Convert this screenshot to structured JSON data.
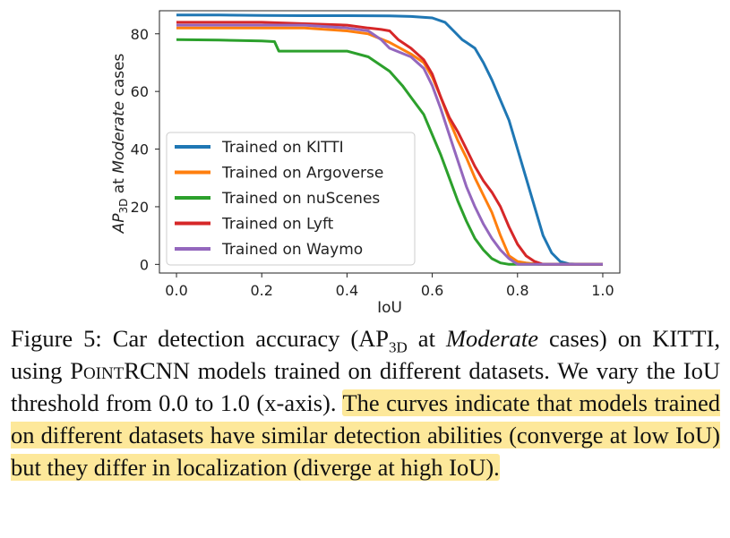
{
  "chart_data": {
    "type": "line",
    "xlabel": "IoU",
    "ylabel": {
      "prefix": "AP",
      "sub": "3D",
      "mid": " at ",
      "italic": "Moderate",
      "suffix": " cases"
    },
    "xlim": [
      0.0,
      1.0
    ],
    "ylim": [
      -3,
      88
    ],
    "xticks": [
      0.0,
      0.2,
      0.4,
      0.6,
      0.8,
      1.0
    ],
    "xtick_labels": [
      "0.0",
      "0.2",
      "0.4",
      "0.6",
      "0.8",
      "1.0"
    ],
    "yticks": [
      0,
      20,
      40,
      60,
      80
    ],
    "ytick_labels": [
      "0",
      "20",
      "40",
      "60",
      "80"
    ],
    "grid": false,
    "legend_position": "bottom-left",
    "series": [
      {
        "name": "Trained on KITTI",
        "color": "#1f77b4",
        "x": [
          0.0,
          0.1,
          0.2,
          0.3,
          0.4,
          0.5,
          0.55,
          0.6,
          0.63,
          0.65,
          0.67,
          0.68,
          0.7,
          0.72,
          0.74,
          0.76,
          0.78,
          0.8,
          0.82,
          0.84,
          0.86,
          0.88,
          0.9,
          0.92,
          0.95,
          1.0
        ],
        "y": [
          86.5,
          86.5,
          86.4,
          86.3,
          86.3,
          86.2,
          86,
          85.5,
          84,
          81,
          78,
          77,
          75,
          70,
          64,
          57,
          50,
          40,
          30,
          20,
          10,
          4,
          1,
          0.2,
          0,
          0
        ]
      },
      {
        "name": "Trained on Argoverse",
        "color": "#ff7f0e",
        "x": [
          0.0,
          0.1,
          0.2,
          0.3,
          0.4,
          0.45,
          0.5,
          0.55,
          0.58,
          0.6,
          0.62,
          0.64,
          0.66,
          0.68,
          0.7,
          0.72,
          0.74,
          0.76,
          0.78,
          0.8,
          0.82,
          0.85,
          0.9,
          1.0
        ],
        "y": [
          82,
          82,
          82,
          82,
          81,
          80,
          77,
          73,
          70,
          65,
          58,
          50,
          43,
          37,
          30,
          24,
          18,
          10,
          3,
          1,
          0.5,
          0,
          0,
          0
        ]
      },
      {
        "name": "Trained on nuScenes",
        "color": "#2ca02c",
        "x": [
          0.0,
          0.1,
          0.2,
          0.23,
          0.24,
          0.3,
          0.4,
          0.45,
          0.5,
          0.53,
          0.55,
          0.58,
          0.6,
          0.62,
          0.64,
          0.66,
          0.68,
          0.7,
          0.72,
          0.74,
          0.76,
          0.78,
          0.8,
          1.0
        ],
        "y": [
          78,
          77.8,
          77.5,
          77.3,
          74,
          74,
          74,
          72,
          67,
          62,
          58,
          52,
          45,
          38,
          30,
          22,
          15,
          9,
          5,
          2,
          0.5,
          0,
          0,
          0
        ]
      },
      {
        "name": "Trained on Lyft",
        "color": "#d62728",
        "x": [
          0.0,
          0.1,
          0.2,
          0.3,
          0.4,
          0.45,
          0.48,
          0.5,
          0.52,
          0.55,
          0.58,
          0.6,
          0.62,
          0.64,
          0.66,
          0.68,
          0.7,
          0.72,
          0.74,
          0.76,
          0.78,
          0.8,
          0.82,
          0.84,
          0.86,
          0.9,
          1.0
        ],
        "y": [
          84,
          84,
          84,
          83.5,
          83,
          82,
          81.5,
          81,
          78,
          75,
          71,
          66,
          58,
          51,
          46,
          40,
          34,
          29,
          25,
          20,
          13,
          7,
          3,
          1,
          0,
          0,
          0
        ]
      },
      {
        "name": "Trained on Waymo",
        "color": "#9467bd",
        "x": [
          0.0,
          0.1,
          0.2,
          0.3,
          0.4,
          0.45,
          0.48,
          0.5,
          0.55,
          0.58,
          0.6,
          0.62,
          0.64,
          0.66,
          0.68,
          0.7,
          0.72,
          0.74,
          0.76,
          0.78,
          0.8,
          0.9,
          1.0
        ],
        "y": [
          83,
          83,
          83,
          83,
          82,
          81,
          78,
          75,
          72,
          68,
          62,
          54,
          45,
          36,
          27,
          20,
          14,
          9,
          5,
          2,
          0,
          0,
          0
        ]
      }
    ]
  },
  "caption": {
    "label": "Figure 5:",
    "t1": " Car detection accuracy (AP",
    "sub": "3D",
    "t2": " at ",
    "italic": "Moderate",
    "t3": " cases) on KITTI, using ",
    "method": "PointRCNN",
    "t4": " models trained on different datasets. We vary the IoU threshold from 0.0 to 1.0 (x-axis). ",
    "highlight": "The curves indicate that models trained on different datasets have similar detection abilities (converge at low IoU) but they differ in localization (diverge at high IoU)."
  }
}
